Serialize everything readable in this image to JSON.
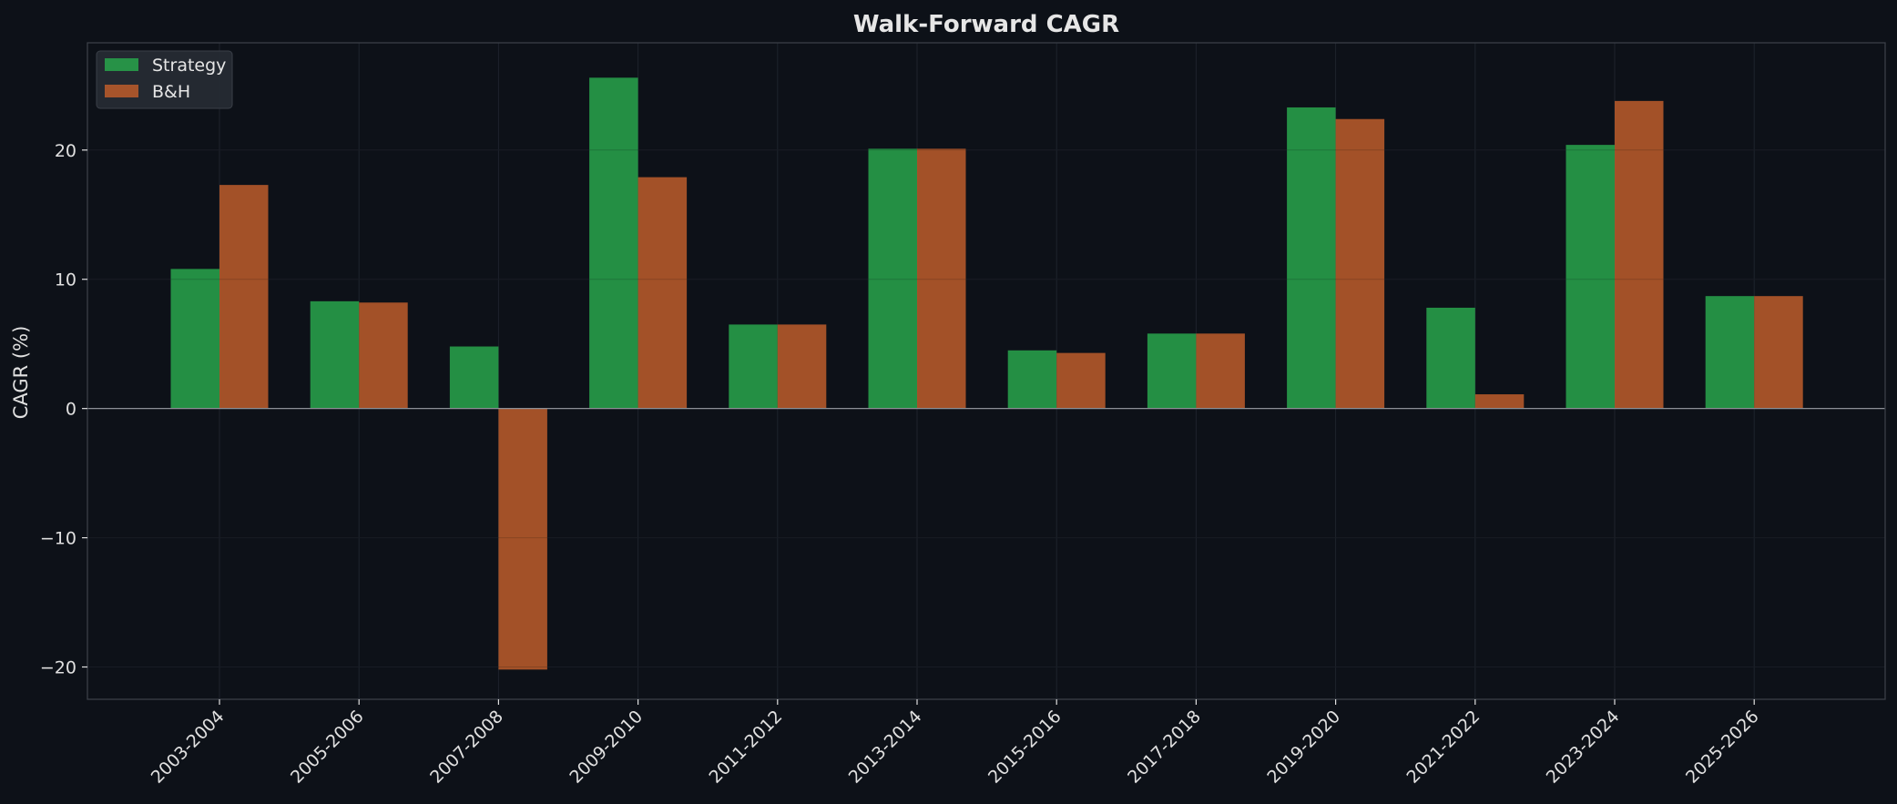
{
  "chart_data": {
    "type": "bar",
    "title": "Walk-Forward CAGR",
    "xlabel": "",
    "ylabel": "CAGR (%)",
    "categories": [
      "2003-2004",
      "2005-2006",
      "2007-2008",
      "2009-2010",
      "2011-2012",
      "2013-2014",
      "2015-2016",
      "2017-2018",
      "2019-2020",
      "2021-2022",
      "2023-2024",
      "2025-2026"
    ],
    "series": [
      {
        "name": "Strategy",
        "color": "#28a04a",
        "values": [
          10.8,
          8.3,
          4.8,
          25.6,
          6.5,
          20.1,
          4.5,
          5.8,
          23.3,
          7.8,
          20.4,
          8.7
        ]
      },
      {
        "name": "B&H",
        "color": "#b85a2a",
        "values": [
          17.3,
          8.2,
          -20.2,
          17.9,
          6.5,
          20.1,
          4.3,
          5.8,
          22.4,
          1.1,
          23.8,
          8.7
        ]
      }
    ],
    "ylim": [
      -22.5,
      28.3
    ],
    "yticks": [
      -20,
      -10,
      0,
      10,
      20
    ],
    "ytick_labels": [
      "−20",
      "−10",
      "0",
      "10",
      "20"
    ],
    "grid": true,
    "legend_position": "top-left",
    "colors": {
      "background": "#0d1118",
      "grid": "#1e232c",
      "spine": "#3a3f48",
      "zero_line": "#8c8f96",
      "text": "#e0e0e0"
    }
  }
}
